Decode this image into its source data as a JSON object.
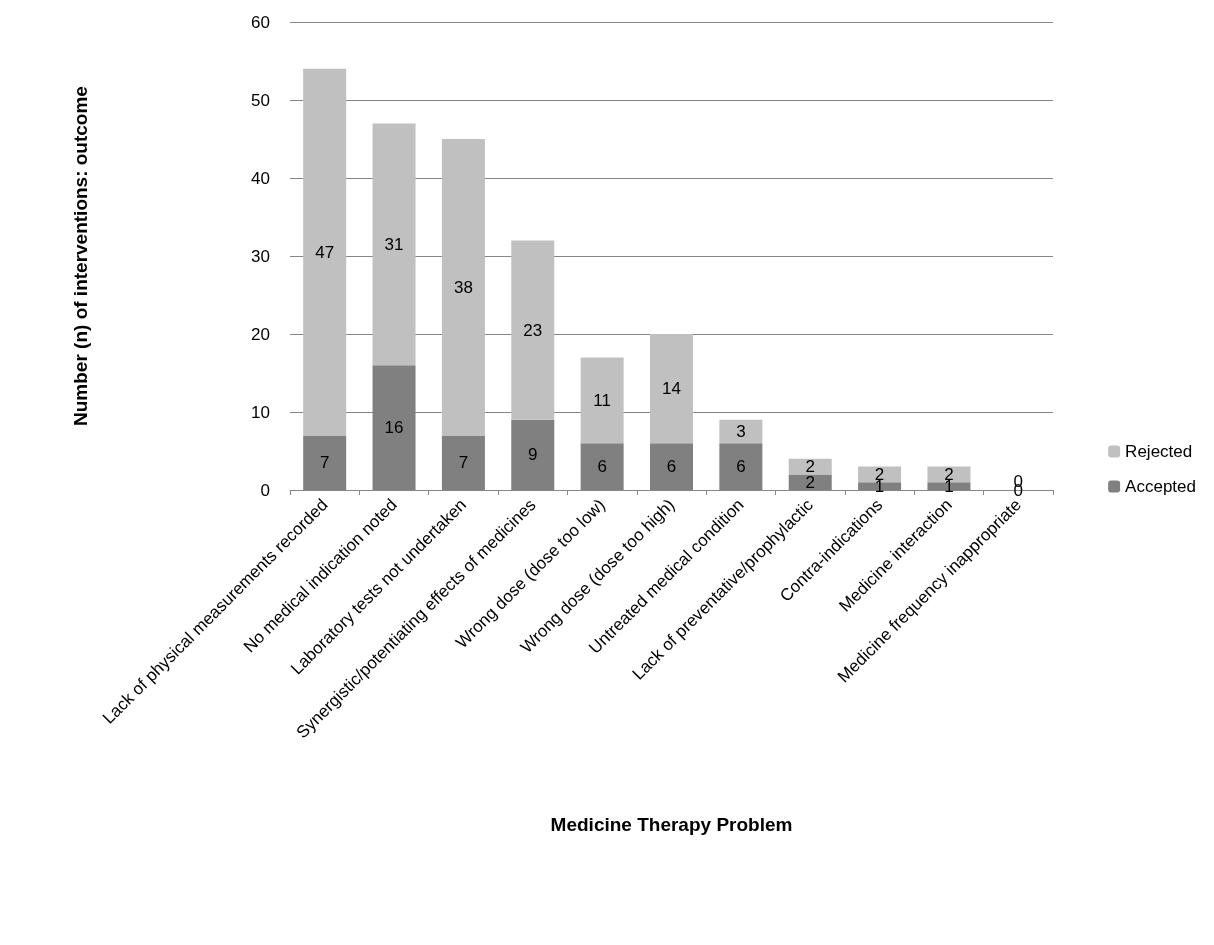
{
  "chart_data": {
    "type": "bar",
    "stacked": true,
    "xlabel": "Medicine Therapy Problem",
    "ylabel": "Number (n) of interventions: outcome",
    "categories": [
      "Lack of physical measurements recorded",
      "No medical indication noted",
      "Laboratory tests not undertaken",
      "Synergistic/potentiating effects of medicines",
      "Wrong dose (dose too low)",
      "Wrong dose (dose too high)",
      "Untreated medical condition",
      "Lack of preventative/prophylactic",
      "Contra-indications",
      "Medicine interaction",
      "Medicine frequency inappropriate"
    ],
    "series": [
      {
        "name": "Accepted",
        "color": "#808080",
        "values": [
          7,
          16,
          7,
          9,
          6,
          6,
          6,
          2,
          1,
          1,
          0
        ]
      },
      {
        "name": "Rejected",
        "color": "#c0c0c0",
        "values": [
          47,
          31,
          38,
          23,
          11,
          14,
          3,
          2,
          2,
          2,
          0
        ]
      }
    ],
    "ylim": [
      0,
      60
    ],
    "yticks": [
      0,
      10,
      20,
      30,
      40,
      50,
      60
    ],
    "grid": "y",
    "legend": "right",
    "data_labels": true
  }
}
